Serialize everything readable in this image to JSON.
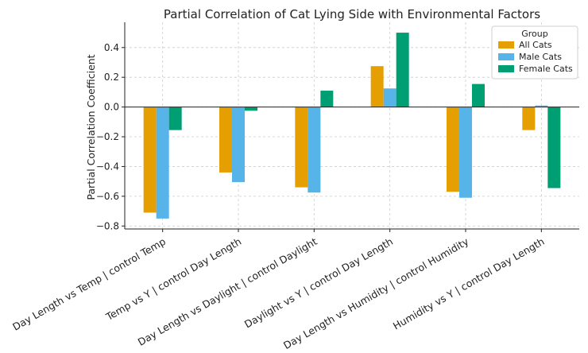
{
  "chart_data": {
    "type": "bar",
    "title": "Partial Correlation of Cat Lying Side with Environmental Factors",
    "xlabel": "",
    "ylabel": "Partial Correlation Coefficient",
    "ylim": [
      -0.82,
      0.57
    ],
    "yticks": [
      0.4,
      0.2,
      0.0,
      -0.2,
      -0.4,
      -0.6,
      -0.8
    ],
    "ytick_labels": [
      "0.4",
      "0.2",
      "0.0",
      "−0.2",
      "−0.4",
      "−0.6",
      "−0.8"
    ],
    "grid": true,
    "legend_position": "top-right",
    "legend_title": "Group",
    "categories": [
      "Day Length vs Temp | control Temp",
      "Temp vs Y | control Day Length",
      "Day Length vs Daylight | control Daylight",
      "Daylight vs Y | control Day Length",
      "Day Length vs Humidity | control Humidity",
      "Humidity vs Y | control Day Length"
    ],
    "series": [
      {
        "name": "All Cats",
        "color": "#E69F00",
        "values": [
          -0.71,
          -0.44,
          -0.54,
          0.275,
          -0.57,
          -0.155
        ]
      },
      {
        "name": "Male Cats",
        "color": "#56B4E9",
        "values": [
          -0.75,
          -0.505,
          -0.575,
          0.125,
          -0.61,
          0.01
        ]
      },
      {
        "name": "Female Cats",
        "color": "#009E73",
        "values": [
          -0.155,
          -0.025,
          0.11,
          0.5,
          0.155,
          -0.545
        ]
      }
    ]
  }
}
